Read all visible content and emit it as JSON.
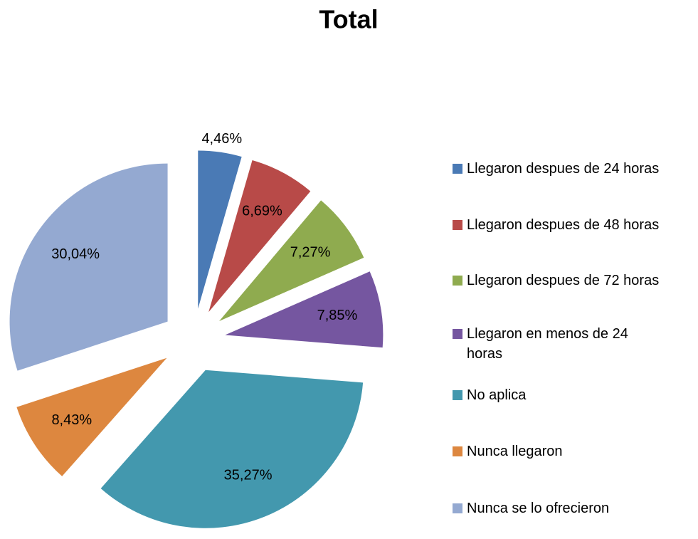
{
  "chart_data": {
    "type": "pie",
    "title": "Total",
    "categories": [
      "Llegaron despues de 24 horas",
      "Llegaron despues de 48 horas",
      "Llegaron despues de 72 horas",
      "Llegaron en menos de 24 horas",
      "No aplica",
      "Nunca llegaron",
      "Nunca se lo ofrecieron"
    ],
    "values": [
      4.46,
      6.69,
      7.27,
      7.85,
      35.27,
      8.43,
      30.04
    ],
    "value_labels": [
      "4,46%",
      "6,69%",
      "7,27%",
      "7,85%",
      "35,27%",
      "8,43%",
      "30,04%"
    ],
    "colors": [
      "#4a7ab5",
      "#b84a48",
      "#8fab4f",
      "#7556a0",
      "#4398ae",
      "#dd873f",
      "#94a9d1"
    ],
    "legend": "right"
  }
}
